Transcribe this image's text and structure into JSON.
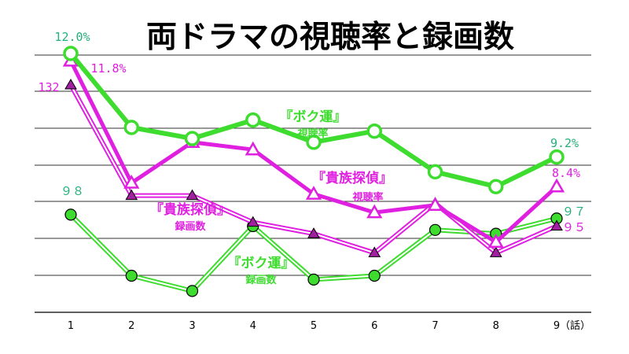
{
  "chart_data": {
    "type": "line",
    "title": "両ドラマの視聴率と録画数",
    "x_unit": "（話）",
    "categories": [
      "1",
      "2",
      "3",
      "4",
      "5",
      "6",
      "7",
      "8",
      "9"
    ],
    "grid": true,
    "series": [
      {
        "name": "『ボク運』視聴率",
        "label_lines": [
          "『ボク運』",
          "視聴率"
        ],
        "kind": "rating",
        "unit": "%",
        "color": "#3ddc2e",
        "marker": "circle",
        "values": [
          12.0,
          10.0,
          9.7,
          10.2,
          9.6,
          9.9,
          8.8,
          8.4,
          9.2
        ],
        "labels": [
          {
            "index": 0,
            "text": "12.0%"
          },
          {
            "index": 8,
            "text": "9.2%"
          }
        ]
      },
      {
        "name": "『貴族探偵』視聴率",
        "label_lines": [
          "『貴族探偵』",
          "視聴率"
        ],
        "kind": "rating",
        "unit": "%",
        "color": "#e020e0",
        "marker": "triangle-open",
        "values": [
          11.8,
          8.5,
          9.6,
          9.4,
          8.2,
          7.7,
          7.9,
          6.9,
          8.4
        ],
        "labels": [
          {
            "index": 0,
            "text": "11.8%"
          },
          {
            "index": 8,
            "text": "8.4%"
          }
        ]
      },
      {
        "name": "『貴族探偵』録画数",
        "label_lines": [
          "『貴族探偵』",
          "録画数"
        ],
        "kind": "recordings",
        "color": "#e020e0",
        "marker": "triangle-filled",
        "values": [
          132,
          103,
          103,
          96,
          93,
          88,
          101,
          88,
          95
        ],
        "labels": [
          {
            "index": 0,
            "text": "132"
          },
          {
            "index": 8,
            "text": "９５"
          }
        ]
      },
      {
        "name": "『ボク運』録画数",
        "label_lines": [
          "『ボク運』",
          "録画数"
        ],
        "kind": "recordings",
        "color": "#3ddc2e",
        "marker": "circle",
        "values": [
          98,
          82,
          78,
          95,
          81,
          82,
          94,
          93,
          97
        ],
        "labels": [
          {
            "index": 0,
            "text": "９８"
          },
          {
            "index": 8,
            "text": "９７"
          }
        ]
      }
    ]
  }
}
